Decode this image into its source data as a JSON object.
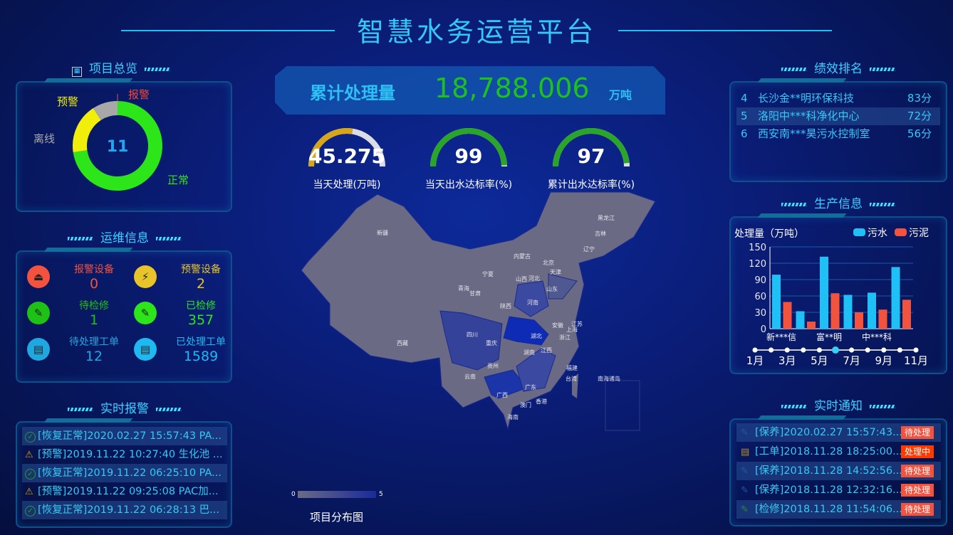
{
  "header": {
    "title": "智慧水务运营平台"
  },
  "overview": {
    "section_title": "项目总览",
    "center_value": "11",
    "segments": [
      {
        "label": "正常",
        "value": 8,
        "color": "#2de61a"
      },
      {
        "label": "报警",
        "value": 0,
        "color": "#f04a3a"
      },
      {
        "label": "预警",
        "value": 2,
        "color": "#f1ee0c"
      },
      {
        "label": "离线",
        "value": 1,
        "color": "#a8a8a8"
      }
    ]
  },
  "ops": {
    "section_title": "运维信息",
    "items": [
      {
        "label": "报警设备",
        "value": "0",
        "color": "#f2533f",
        "icon": "alarm-light-icon"
      },
      {
        "label": "预警设备",
        "value": "2",
        "color": "#e6c42a",
        "icon": "warning-light-icon"
      },
      {
        "label": "待检修",
        "value": "1",
        "color": "#1ec214",
        "icon": "wrench-icon"
      },
      {
        "label": "已检修",
        "value": "357",
        "color": "#2de61a",
        "icon": "wrench-icon"
      },
      {
        "label": "待处理工单",
        "value": "12",
        "color": "#1fa8e0",
        "icon": "clipboard-icon"
      },
      {
        "label": "已处理工单",
        "value": "1589",
        "color": "#1fb8f0",
        "icon": "clipboard-icon"
      }
    ]
  },
  "alarms": {
    "section_title": "实时报警",
    "items": [
      {
        "text": "[恢复正常]2020.02.27 15:57:43 PA...",
        "icon": "check-circle-icon"
      },
      {
        "text": "[预警]2019.11.22 10:27:40 生化池 ...",
        "icon": "warning-light-icon"
      },
      {
        "text": "[恢复正常]2019.11.22 06:25:10 PA...",
        "icon": "check-circle-icon"
      },
      {
        "text": "[预警]2019.11.22 09:25:08 PAC加...",
        "icon": "warning-light-icon"
      },
      {
        "text": "[恢复正常]2019.11.22 06:28:13 巴...",
        "icon": "check-circle-icon"
      }
    ]
  },
  "total": {
    "label": "累计处理量",
    "value": "18,788.006",
    "unit": "万吨"
  },
  "gauges": [
    {
      "value": "45.275",
      "label": "当天处理(万吨)",
      "fill": 0.55,
      "color": "#d6a51a"
    },
    {
      "value": "99",
      "label": "当天出水达标率(%)",
      "fill": 0.99,
      "color": "#2aa52a"
    },
    {
      "value": "97",
      "label": "累计出水达标率(%)",
      "fill": 0.97,
      "color": "#2aa52a"
    }
  ],
  "map": {
    "title": "项目分布图",
    "legend_min": "0",
    "legend_max": "5",
    "provinces": [
      "新疆",
      "西藏",
      "青海",
      "甘肃",
      "宁夏",
      "内蒙古",
      "黑龙江",
      "吉林",
      "辽宁",
      "北京",
      "天津",
      "河北",
      "山西",
      "山东",
      "河南",
      "陕西",
      "四川",
      "重庆",
      "湖北",
      "安徽",
      "江苏",
      "上海",
      "浙江",
      "湖南",
      "江西",
      "贵州",
      "云南",
      "广西",
      "广东",
      "福建",
      "台湾",
      "香港",
      "澳门",
      "海南",
      "南海诸岛"
    ]
  },
  "ranking": {
    "section_title": "绩效排名",
    "items": [
      {
        "rank": "4",
        "name": "长沙金**明环保科技",
        "score": "83分"
      },
      {
        "rank": "5",
        "name": "洛阳中***科净化中心",
        "score": "72分"
      },
      {
        "rank": "6",
        "name": "西安南***昊污水控制室",
        "score": "56分"
      }
    ]
  },
  "production": {
    "section_title": "生产信息",
    "chart_data": {
      "type": "bar",
      "title": "处理量（万吨）",
      "ylim": [
        0,
        150
      ],
      "yticks": [
        0,
        30,
        60,
        90,
        120,
        150
      ],
      "categories": [
        "新***信",
        "",
        "富**明",
        "",
        "中***科",
        ""
      ],
      "series": [
        {
          "name": "污水",
          "color": "#1ec0f5",
          "values": [
            99,
            32,
            132,
            62,
            66,
            113
          ]
        },
        {
          "name": "污泥",
          "color": "#f2533f",
          "values": [
            49,
            13,
            65,
            30,
            35,
            53
          ]
        }
      ],
      "grid": true,
      "legend": "top-right"
    },
    "timeline": {
      "labels": [
        "1月",
        "3月",
        "5月",
        "7月",
        "9月",
        "11月"
      ],
      "points": 11,
      "active_index": 5
    }
  },
  "notices": {
    "section_title": "实时通知",
    "items": [
      {
        "text": "[保养]2020.02.27 15:57:43...",
        "status": "待处理",
        "icon": "wrench-icon",
        "status_color": "#f2533f"
      },
      {
        "text": "[工单]2018.11.28 18:25:00...",
        "status": "处理中",
        "icon": "clipboard-icon",
        "status_color": "#ff3a00"
      },
      {
        "text": "[保养]2018.11.28 14:52:56...",
        "status": "待处理",
        "icon": "wrench-icon",
        "status_color": "#f2533f"
      },
      {
        "text": "[保养]2018.11.28 12:32:16...",
        "status": "待处理",
        "icon": "wrench-icon",
        "status_color": "#f2533f"
      },
      {
        "text": "[检修]2018.11.28 11:54:06...",
        "status": "待处理",
        "icon": "wrench-icon",
        "status_color": "#f2533f"
      }
    ]
  }
}
